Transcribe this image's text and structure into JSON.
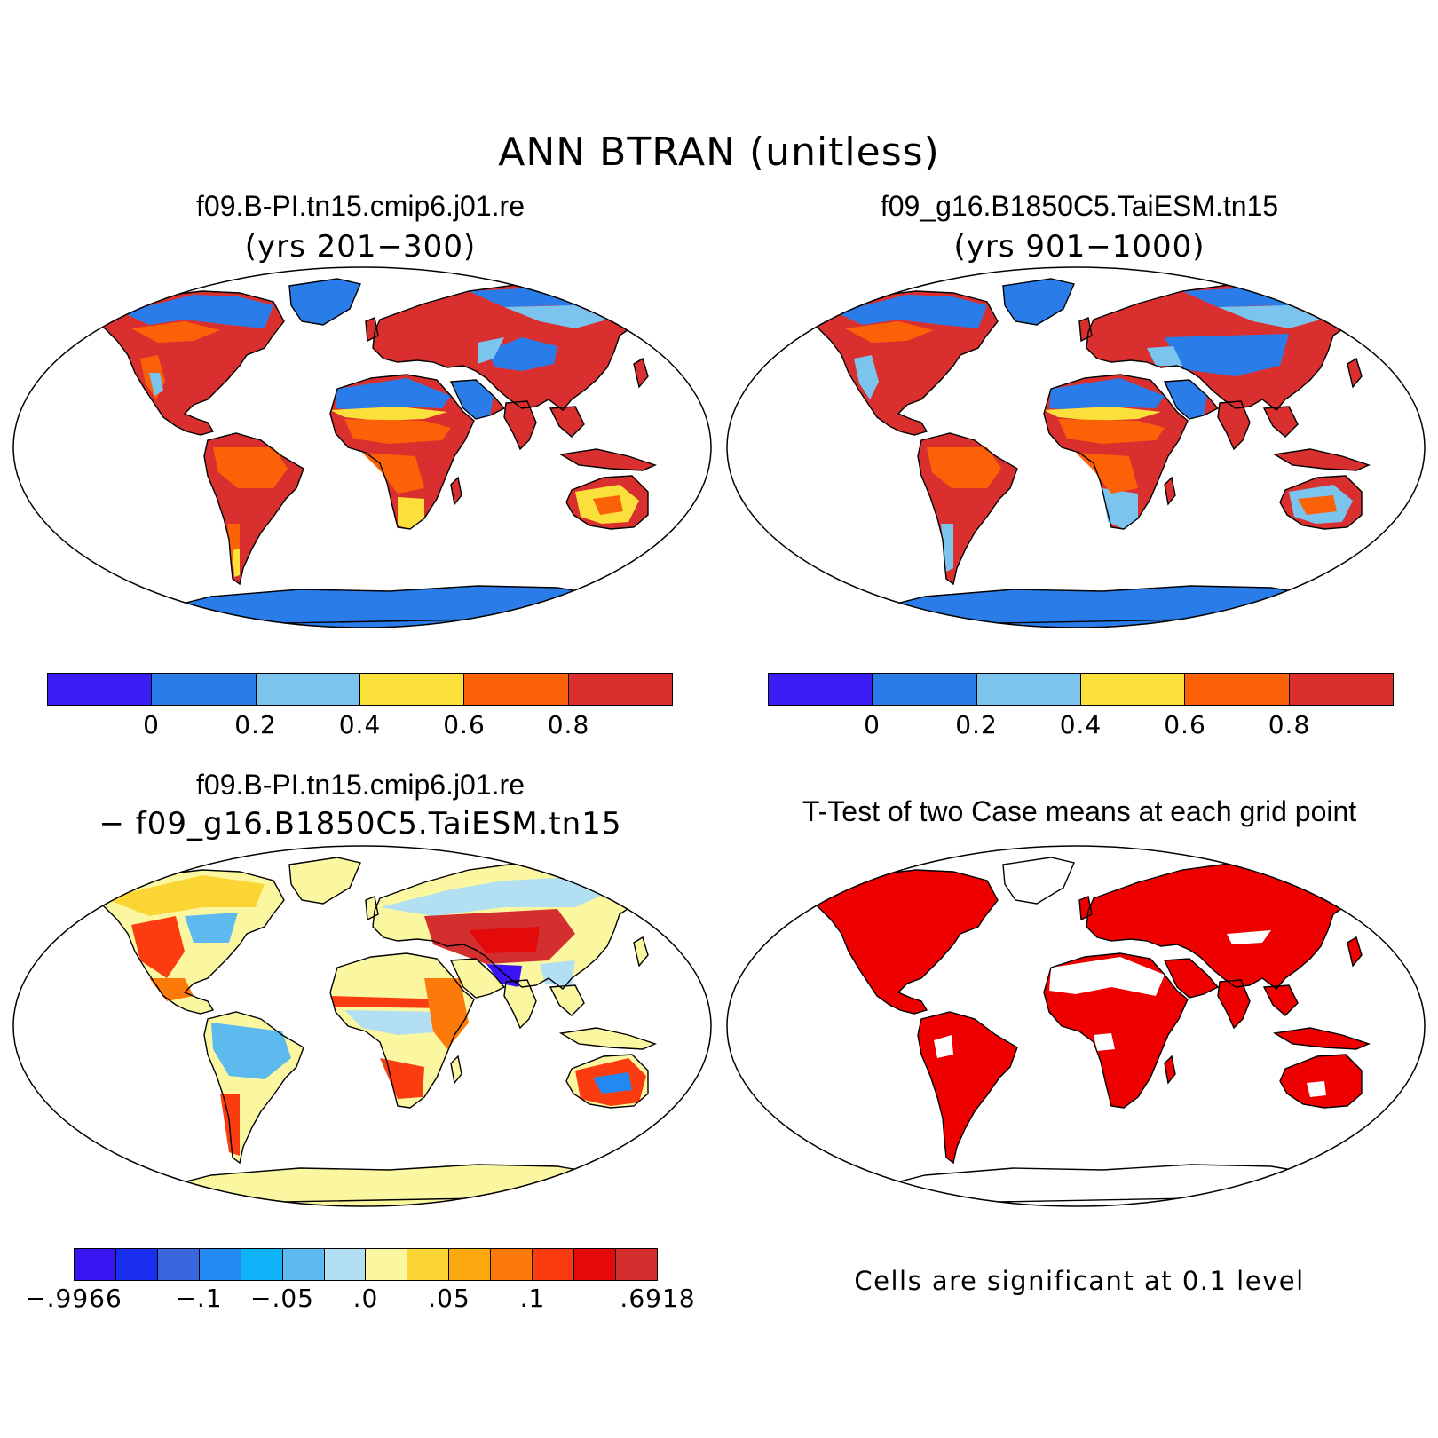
{
  "main_title": "ANN  BTRAN (unitless)",
  "panels": {
    "case1": {
      "title": "f09.B-PI.tn15.cmip6.j01.re",
      "years": "(yrs 201−300)"
    },
    "case2": {
      "title": "f09_g16.B1850C5.TaiESM.tn15",
      "years": "(yrs 901−1000)"
    },
    "diff": {
      "title_line1": "f09.B-PI.tn15.cmip6.j01.re",
      "title_line2": "−  f09_g16.B1850C5.TaiESM.tn15"
    },
    "ttest": {
      "title": "T-Test of two Case means at each grid point",
      "note": "Cells are significant at 0.1 level"
    }
  },
  "colorbars": {
    "field": {
      "colors": [
        "#3a1cf5",
        "#2a7de9",
        "#7bc4ee",
        "#fbe03c",
        "#fb6208",
        "#d9302f"
      ],
      "tick_labels": [
        "0",
        "0.2",
        "0.4",
        "0.6",
        "0.8"
      ]
    },
    "diff": {
      "colors": [
        "#3a14f5",
        "#1a2ef0",
        "#3a66de",
        "#2288f2",
        "#10b2f8",
        "#5cbaee",
        "#b3dff2",
        "#fbf7a0",
        "#fbd533",
        "#fba70e",
        "#fb7a0a",
        "#fb3c10",
        "#e40a0a",
        "#d42f2f"
      ],
      "tick_labels": [
        "−.9966",
        "−.1",
        "−.05",
        ".0",
        ".05",
        ".1",
        ".6918"
      ]
    }
  },
  "significance_color": "#ef0000",
  "map_colors": {
    "ocean": "#ffffff",
    "coast": "#000000"
  }
}
